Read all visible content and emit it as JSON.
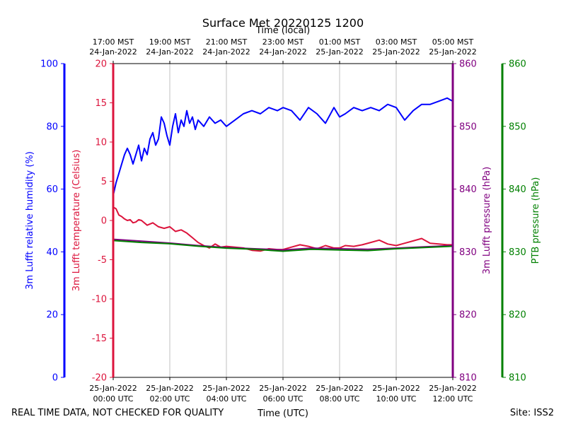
{
  "chart_data": {
    "type": "line",
    "title": "Surface Met 20220125 1200",
    "top_axis_label": "Time (local)",
    "xlabel": "Time (UTC)",
    "footer_left": "REAL TIME DATA, NOT CHECKED FOR QUALITY",
    "footer_right": "Site: ISS2",
    "x_ticks_utc": [
      {
        "line1": "25-Jan-2022",
        "line2": "00:00 UTC",
        "hour": 0
      },
      {
        "line1": "25-Jan-2022",
        "line2": "02:00 UTC",
        "hour": 2
      },
      {
        "line1": "25-Jan-2022",
        "line2": "04:00 UTC",
        "hour": 4
      },
      {
        "line1": "25-Jan-2022",
        "line2": "06:00 UTC",
        "hour": 6
      },
      {
        "line1": "25-Jan-2022",
        "line2": "08:00 UTC",
        "hour": 8
      },
      {
        "line1": "25-Jan-2022",
        "line2": "10:00 UTC",
        "hour": 10
      },
      {
        "line1": "25-Jan-2022",
        "line2": "12:00 UTC",
        "hour": 12
      }
    ],
    "x_ticks_local": [
      {
        "line1": "17:00 MST",
        "line2": "24-Jan-2022",
        "hour": 0
      },
      {
        "line1": "19:00 MST",
        "line2": "24-Jan-2022",
        "hour": 2
      },
      {
        "line1": "21:00 MST",
        "line2": "24-Jan-2022",
        "hour": 4
      },
      {
        "line1": "23:00 MST",
        "line2": "24-Jan-2022",
        "hour": 6
      },
      {
        "line1": "01:00 MST",
        "line2": "25-Jan-2022",
        "hour": 8
      },
      {
        "line1": "03:00 MST",
        "line2": "25-Jan-2022",
        "hour": 10
      },
      {
        "line1": "05:00 MST",
        "line2": "25-Jan-2022",
        "hour": 12
      }
    ],
    "xlim_hours": [
      0,
      12
    ],
    "grid": "vertical",
    "axes": {
      "humidity": {
        "label": "3m Lufft relative humidity (%)",
        "color": "#0000ff",
        "ylim": [
          0,
          100
        ],
        "ticks": [
          0,
          20,
          40,
          60,
          80,
          100
        ]
      },
      "temperature": {
        "label": "3m Lufft temperature (Celsius)",
        "color": "#dc143c",
        "ylim": [
          -20,
          20
        ],
        "ticks": [
          -20,
          -15,
          -10,
          -5,
          0,
          5,
          10,
          15,
          20
        ]
      },
      "lufft_pressure": {
        "label": "3m Lufft pressure (hPa)",
        "color": "#800080",
        "ylim": [
          810,
          860
        ],
        "ticks": [
          810,
          820,
          830,
          840,
          850,
          860
        ]
      },
      "ptb_pressure": {
        "label": "PTB pressure (hPa)",
        "color": "#008000",
        "ylim": [
          810,
          860
        ],
        "ticks": [
          810,
          820,
          830,
          840,
          850,
          860
        ]
      }
    },
    "series": [
      {
        "axis": "humidity",
        "x_hours": [
          0,
          0.1,
          0.2,
          0.3,
          0.4,
          0.5,
          0.6,
          0.7,
          0.8,
          0.9,
          1.0,
          1.1,
          1.2,
          1.3,
          1.4,
          1.5,
          1.6,
          1.7,
          1.8,
          1.9,
          2.0,
          2.1,
          2.2,
          2.3,
          2.4,
          2.5,
          2.6,
          2.7,
          2.8,
          2.9,
          3.0,
          3.2,
          3.4,
          3.6,
          3.8,
          4.0,
          4.3,
          4.6,
          4.9,
          5.2,
          5.5,
          5.8,
          6.0,
          6.3,
          6.6,
          6.9,
          7.2,
          7.5,
          7.8,
          8.0,
          8.2,
          8.5,
          8.8,
          9.1,
          9.4,
          9.7,
          10.0,
          10.3,
          10.6,
          10.9,
          11.2,
          11.5,
          11.8,
          12.0
        ],
        "values": [
          58,
          62,
          65,
          68,
          71,
          73,
          71,
          68,
          71,
          74,
          69,
          73,
          71,
          76,
          78,
          74,
          76,
          83,
          81,
          77,
          74,
          80,
          84,
          78,
          82,
          80,
          85,
          81,
          83,
          79,
          82,
          80,
          83,
          81,
          82,
          80,
          82,
          84,
          85,
          84,
          86,
          85,
          86,
          85,
          82,
          86,
          84,
          81,
          86,
          83,
          84,
          86,
          85,
          86,
          85,
          87,
          86,
          82,
          85,
          87,
          87,
          88,
          89,
          88
        ]
      },
      {
        "axis": "temperature",
        "x_hours": [
          0,
          0.1,
          0.2,
          0.3,
          0.4,
          0.5,
          0.6,
          0.7,
          0.8,
          0.9,
          1.0,
          1.2,
          1.4,
          1.6,
          1.8,
          2.0,
          2.2,
          2.4,
          2.6,
          2.8,
          3.0,
          3.2,
          3.4,
          3.6,
          3.8,
          4.0,
          4.3,
          4.6,
          4.9,
          5.2,
          5.5,
          5.8,
          6.0,
          6.3,
          6.6,
          6.9,
          7.2,
          7.5,
          7.8,
          8.0,
          8.2,
          8.5,
          8.8,
          9.1,
          9.4,
          9.7,
          10.0,
          10.3,
          10.6,
          10.9,
          11.2,
          11.5,
          11.8,
          12.0
        ],
        "values": [
          1.7,
          1.5,
          0.7,
          0.5,
          0.2,
          0.0,
          0.1,
          -0.3,
          -0.2,
          0.1,
          0.0,
          -0.6,
          -0.3,
          -0.8,
          -1.0,
          -0.8,
          -1.4,
          -1.2,
          -1.6,
          -2.2,
          -2.8,
          -3.2,
          -3.5,
          -3.0,
          -3.4,
          -3.3,
          -3.4,
          -3.5,
          -3.8,
          -3.9,
          -3.6,
          -3.7,
          -3.7,
          -3.4,
          -3.1,
          -3.3,
          -3.6,
          -3.2,
          -3.5,
          -3.5,
          -3.2,
          -3.3,
          -3.1,
          -2.8,
          -2.5,
          -3.0,
          -3.2,
          -2.9,
          -2.6,
          -2.3,
          -2.9,
          -3.0,
          -3.1,
          -3.1
        ]
      },
      {
        "axis": "lufft_pressure",
        "x_hours": [
          0,
          1,
          2,
          3,
          4,
          5,
          6,
          7,
          8,
          9,
          10,
          11,
          12
        ],
        "values": [
          832.0,
          831.7,
          831.4,
          831.0,
          830.7,
          830.5,
          830.3,
          830.6,
          830.5,
          830.4,
          830.6,
          830.8,
          831.0
        ]
      },
      {
        "axis": "ptb_pressure",
        "x_hours": [
          0,
          1,
          2,
          3,
          4,
          5,
          6,
          7,
          8,
          9,
          10,
          11,
          12
        ],
        "values": [
          831.8,
          831.5,
          831.3,
          830.9,
          830.6,
          830.4,
          830.1,
          830.4,
          830.3,
          830.2,
          830.5,
          830.7,
          830.9
        ]
      }
    ]
  }
}
